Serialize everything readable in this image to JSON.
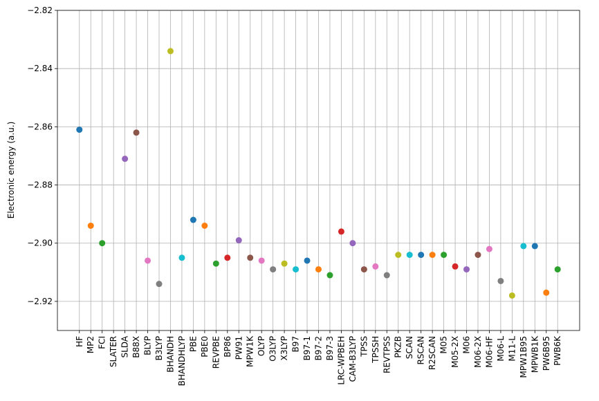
{
  "chart_data": {
    "type": "scatter",
    "y_label": "Electronic energy (a.u.)",
    "categories": [
      "HF",
      "MP2",
      "FCI",
      "SLATER",
      "SLDA",
      "B88X",
      "BLYP",
      "B3LYP",
      "BHANDH",
      "BHANDHLYP",
      "PBE",
      "PBE0",
      "REVPBE",
      "BP86",
      "PW91",
      "MPW1K",
      "OLYP",
      "O3LYP",
      "X3LYP",
      "B97",
      "B97-1",
      "B97-2",
      "B97-3",
      "LRC-WPBEH",
      "CAM-B3LYP",
      "TPSS",
      "TPSSH",
      "REVTPSS",
      "PKZB",
      "SCAN",
      "RSCAN",
      "R2SCAN",
      "M05",
      "M05-2X",
      "M06",
      "M06-2X",
      "M06-HF",
      "M06-L",
      "M11-L",
      "MPW1B95",
      "MPWB1K",
      "PW6B95",
      "PWB6K"
    ],
    "values": [
      -2.861,
      -2.894,
      -2.9,
      null,
      -2.871,
      -2.862,
      -2.906,
      -2.914,
      -2.834,
      -2.905,
      -2.892,
      -2.894,
      -2.907,
      -2.905,
      -2.899,
      -2.905,
      -2.906,
      -2.909,
      -2.907,
      -2.909,
      -2.906,
      -2.909,
      -2.911,
      -2.896,
      -2.9,
      -2.909,
      -2.908,
      -2.911,
      -2.904,
      -2.904,
      -2.904,
      -2.904,
      -2.904,
      -2.908,
      -2.909,
      -2.904,
      -2.902,
      -2.913,
      -2.918,
      -2.901,
      -2.901,
      -2.917,
      -2.909
    ],
    "colors": [
      "#1f77b4",
      "#ff7f0e",
      "#2ca02c",
      "#d62728",
      "#9467bd",
      "#8c564b",
      "#e377c2",
      "#7f7f7f",
      "#bcbd22",
      "#17becf"
    ],
    "ylim": [
      -2.93,
      -2.82
    ],
    "yticks": [
      {
        "value": -2.92,
        "label": "−2.92"
      },
      {
        "value": -2.9,
        "label": "−2.90"
      },
      {
        "value": -2.88,
        "label": "−2.88"
      },
      {
        "value": -2.86,
        "label": "−2.86"
      },
      {
        "value": -2.84,
        "label": "−2.84"
      },
      {
        "value": -2.82,
        "label": "−2.82"
      }
    ],
    "grid": true
  }
}
